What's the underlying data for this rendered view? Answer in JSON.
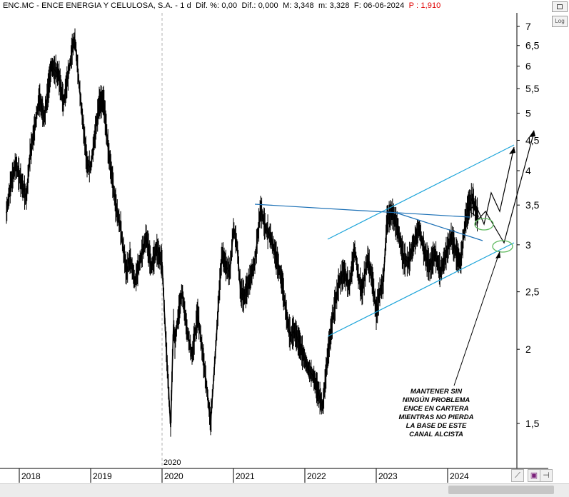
{
  "header": {
    "ticker": "ENC.MC",
    "name": "ENCE ENERGIA Y CELULOSA, S.A.",
    "period": "1 d",
    "dif_pct_label": "Dif. %:",
    "dif_pct": "0,00",
    "dif_label": "Dif.:",
    "dif": "0,000",
    "max_label": "M:",
    "max": "3,348",
    "min_label": "m:",
    "min": "3,328",
    "date_label": "F:",
    "date": "06-06-2024",
    "p_label": "P :",
    "p": "1,910"
  },
  "controls": {
    "log_label": "Log",
    "zoom_icon": "diagonal-lines-icon",
    "save_icon": "floppy-disk-icon",
    "pin_icon": "pin-icon"
  },
  "annotation_text": [
    "MANTENER SIN",
    "NINGÚN PROBLEMA",
    "ENCE EN CARTERA",
    "MIENTRAS NO PIERDA",
    "LA BASE DE ESTE",
    "CANAL ALCISTA"
  ],
  "colors": {
    "price": "#000000",
    "trendline": "#1aa3d9",
    "ellipse": "#5cb85c",
    "header_negative": "#e00000"
  },
  "chart_data": {
    "type": "line",
    "scale": "log",
    "x_start_label": "2020",
    "y_ticks": [
      "7",
      "6,5",
      "6",
      "5,5",
      "5",
      "4,5",
      "4",
      "3,5",
      "3",
      "2,5",
      "2",
      "1,5"
    ],
    "y_tick_values": [
      7,
      6.5,
      6,
      5.5,
      5,
      4.5,
      4,
      3.5,
      3,
      2.5,
      2,
      1.5
    ],
    "x_ticks": [
      "2018",
      "2019",
      "2020",
      "2021",
      "2022",
      "2023",
      "2024"
    ],
    "x_tick_values": [
      2018,
      2019,
      2020,
      2021,
      2022,
      2023,
      2024
    ],
    "xlim": [
      2017.8,
      2024.95
    ],
    "ylim": [
      1.32,
      7.55
    ],
    "series": [
      {
        "x": [
          2017.82,
          2017.88,
          2017.95,
          2018.05,
          2018.1,
          2018.15,
          2018.2,
          2018.28,
          2018.35,
          2018.45,
          2018.55,
          2018.62,
          2018.7,
          2018.75,
          2018.78,
          2018.85,
          2018.9,
          2018.95,
          2019.0,
          2019.05,
          2019.12,
          2019.18,
          2019.25,
          2019.3,
          2019.35,
          2019.42,
          2019.5,
          2019.55,
          2019.62,
          2019.7,
          2019.78,
          2019.85,
          2019.92,
          2020.0,
          2020.05,
          2020.12,
          2020.16,
          2020.18,
          2020.22,
          2020.28,
          2020.35,
          2020.42,
          2020.5,
          2020.55,
          2020.62,
          2020.68,
          2020.75,
          2020.8,
          2020.84,
          2020.9,
          2020.95,
          2021.0,
          2021.05,
          2021.1,
          2021.15,
          2021.22,
          2021.3,
          2021.38,
          2021.45,
          2021.52,
          2021.6,
          2021.68,
          2021.75,
          2021.8,
          2021.85,
          2021.92,
          2021.98,
          2022.05,
          2022.12,
          2022.18,
          2022.25,
          2022.32,
          2022.4,
          2022.48,
          2022.55,
          2022.62,
          2022.7,
          2022.75,
          2022.8,
          2022.88,
          2022.95,
          2023.0,
          2023.05,
          2023.1,
          2023.15,
          2023.22,
          2023.3,
          2023.38,
          2023.45,
          2023.52,
          2023.6,
          2023.68,
          2023.75,
          2023.82,
          2023.9,
          2023.98,
          2024.05,
          2024.12,
          2024.18,
          2024.25,
          2024.3,
          2024.35,
          2024.4,
          2024.43
        ],
        "y": [
          3.4,
          3.8,
          4.1,
          3.75,
          3.6,
          4.25,
          4.6,
          5.3,
          4.9,
          6.0,
          5.8,
          5.2,
          5.95,
          6.5,
          6.65,
          5.4,
          4.7,
          4.1,
          4.05,
          4.5,
          5.2,
          5.25,
          4.3,
          3.9,
          3.5,
          3.2,
          2.7,
          2.85,
          2.6,
          2.85,
          3.1,
          2.75,
          2.95,
          2.8,
          2.1,
          1.48,
          2.2,
          2.05,
          2.25,
          2.5,
          2.15,
          1.95,
          2.3,
          2.05,
          1.75,
          1.5,
          2.0,
          2.5,
          2.9,
          2.75,
          2.7,
          3.2,
          3.0,
          2.5,
          2.45,
          2.6,
          2.8,
          3.45,
          3.2,
          3.1,
          2.85,
          2.6,
          2.25,
          2.1,
          2.15,
          2.05,
          1.95,
          1.85,
          1.8,
          1.7,
          1.6,
          1.95,
          2.3,
          2.6,
          2.7,
          2.55,
          2.95,
          2.65,
          2.5,
          2.85,
          2.6,
          2.3,
          2.5,
          2.6,
          3.3,
          3.4,
          3.2,
          2.85,
          2.8,
          3.0,
          3.2,
          2.9,
          2.75,
          2.9,
          2.7,
          2.9,
          3.1,
          2.9,
          2.8,
          3.3,
          3.5,
          3.6,
          3.4,
          3.35
        ]
      }
    ]
  }
}
